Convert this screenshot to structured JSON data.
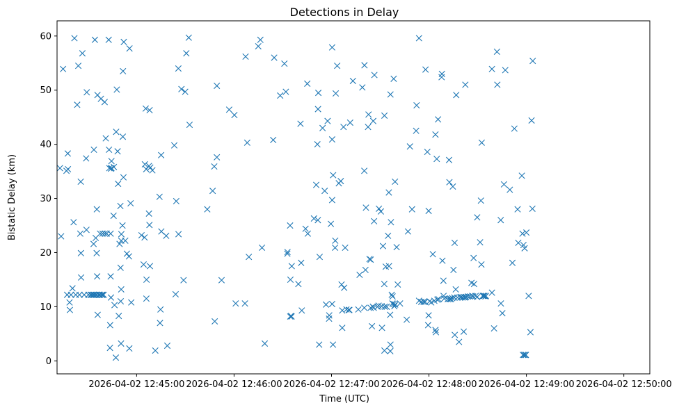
{
  "chart_data": {
    "type": "scatter",
    "title": "Detections in Delay",
    "xlabel": "Time (UTC)",
    "ylabel": "Bistatic Delay (km)",
    "marker": "x",
    "color": "#1f77b4",
    "grid": false,
    "xlim_seconds": [
      -49,
      316
    ],
    "ylim": [
      -2.4,
      62.8
    ],
    "x_ticks": [
      {
        "t": 0,
        "label": "2026-04-02 12:45:00"
      },
      {
        "t": 60,
        "label": "2026-04-02 12:46:00"
      },
      {
        "t": 120,
        "label": "2026-04-02 12:47:00"
      },
      {
        "t": 180,
        "label": "2026-04-02 12:48:00"
      },
      {
        "t": 240,
        "label": "2026-04-02 12:49:00"
      },
      {
        "t": 300,
        "label": "2026-04-02 12:50:00"
      }
    ],
    "y_ticks": [
      0,
      10,
      20,
      30,
      40,
      50,
      60
    ],
    "time_origin": "2026-04-02 12:45:00",
    "points_note": "t = seconds after 12:45:00, y = bistatic delay in km",
    "points": [
      [
        -47.2,
        35.6
      ],
      [
        -46.5,
        23.0
      ],
      [
        -45.3,
        53.9
      ],
      [
        -43.2,
        35.1
      ],
      [
        -42.8,
        12.2
      ],
      [
        -42.4,
        38.3
      ],
      [
        -42.3,
        35.4
      ],
      [
        -41.3,
        10.8
      ],
      [
        -41.1,
        9.4
      ],
      [
        -40.4,
        12.2
      ],
      [
        -39.5,
        13.4
      ],
      [
        -38.8,
        25.6
      ],
      [
        -38.3,
        59.6
      ],
      [
        -37.5,
        12.2
      ],
      [
        -36.6,
        47.3
      ],
      [
        -35.9,
        54.5
      ],
      [
        -35.2,
        12.2
      ],
      [
        -34.7,
        23.5
      ],
      [
        -34.4,
        33.1
      ],
      [
        -34.3,
        19.9
      ],
      [
        -34.2,
        15.4
      ],
      [
        -33.4,
        56.8
      ],
      [
        -32.3,
        12.2
      ],
      [
        -31.1,
        37.4
      ],
      [
        -30.9,
        24.2
      ],
      [
        -30.7,
        49.6
      ],
      [
        -29.7,
        12.2
      ],
      [
        -28.3,
        12.2
      ],
      [
        -27.7,
        12.2
      ],
      [
        -26.8,
        12.2
      ],
      [
        -26.5,
        21.6
      ],
      [
        -26.3,
        39.0
      ],
      [
        -26.2,
        12.2
      ],
      [
        -25.7,
        59.3
      ],
      [
        -25.3,
        12.2
      ],
      [
        -25.2,
        22.7
      ],
      [
        -24.6,
        12.2
      ],
      [
        -24.6,
        19.9
      ],
      [
        -24.5,
        28.0
      ],
      [
        -24.3,
        15.6
      ],
      [
        -24.1,
        49.1
      ],
      [
        -24.0,
        8.5
      ],
      [
        -23.3,
        12.2
      ],
      [
        -23.1,
        12.2
      ],
      [
        -22.6,
        12.2
      ],
      [
        -22.5,
        23.5
      ],
      [
        -22.0,
        48.4
      ],
      [
        -21.5,
        12.2
      ],
      [
        -21.0,
        12.2
      ],
      [
        -21.0,
        23.5
      ],
      [
        -20.3,
        12.2
      ],
      [
        -19.7,
        47.8
      ],
      [
        -19.6,
        23.5
      ],
      [
        -19.0,
        41.1
      ],
      [
        -18.4,
        23.5
      ],
      [
        -17.2,
        59.3
      ],
      [
        -17.0,
        39.0
      ],
      [
        -16.8,
        35.6
      ],
      [
        -16.4,
        2.4
      ],
      [
        -16.3,
        6.6
      ],
      [
        -16.0,
        23.5
      ],
      [
        -16.0,
        15.6
      ],
      [
        -15.8,
        11.7
      ],
      [
        -15.8,
        35.5
      ],
      [
        -15.5,
        36.9
      ],
      [
        -15.5,
        35.6
      ],
      [
        -14.2,
        26.8
      ],
      [
        -14.0,
        35.8
      ],
      [
        -13.6,
        10.3
      ],
      [
        -12.8,
        0.6
      ],
      [
        -12.6,
        42.3
      ],
      [
        -12.2,
        50.1
      ],
      [
        -11.7,
        38.7
      ],
      [
        -11.4,
        32.7
      ],
      [
        -11.0,
        8.3
      ],
      [
        -10.5,
        21.6
      ],
      [
        -10.0,
        28.6
      ],
      [
        -9.9,
        17.2
      ],
      [
        -9.8,
        11.0
      ],
      [
        -9.6,
        3.2
      ],
      [
        -9.5,
        13.2
      ],
      [
        -9.5,
        22.2
      ],
      [
        -9.4,
        23.4
      ],
      [
        -8.7,
        25.0
      ],
      [
        -8.5,
        41.4
      ],
      [
        -8.4,
        53.5
      ],
      [
        -8.1,
        33.9
      ],
      [
        -7.9,
        58.9
      ],
      [
        -7.0,
        22.2
      ],
      [
        -6.0,
        19.8
      ],
      [
        -4.7,
        19.3
      ],
      [
        -4.5,
        2.3
      ],
      [
        -4.4,
        57.7
      ],
      [
        -3.7,
        29.1
      ],
      [
        -3.3,
        10.8
      ],
      [
        3.0,
        23.2
      ],
      [
        4.3,
        17.8
      ],
      [
        4.9,
        22.8
      ],
      [
        5.1,
        36.3
      ],
      [
        5.6,
        46.6
      ],
      [
        5.9,
        35.4
      ],
      [
        6.0,
        11.5
      ],
      [
        6.1,
        15.0
      ],
      [
        7.6,
        27.2
      ],
      [
        7.6,
        36.0
      ],
      [
        7.9,
        25.1
      ],
      [
        8.0,
        46.3
      ],
      [
        8.2,
        17.5
      ],
      [
        8.4,
        35.7
      ],
      [
        9.7,
        35.2
      ],
      [
        11.5,
        1.9
      ],
      [
        14.1,
        30.3
      ],
      [
        14.4,
        7.0
      ],
      [
        14.7,
        9.5
      ],
      [
        15.1,
        38.0
      ],
      [
        15.2,
        23.9
      ],
      [
        18.2,
        23.1
      ],
      [
        18.9,
        2.8
      ],
      [
        23.2,
        39.8
      ],
      [
        24.0,
        12.3
      ],
      [
        24.4,
        29.5
      ],
      [
        25.7,
        54.0
      ],
      [
        25.8,
        23.4
      ],
      [
        27.6,
        50.2
      ],
      [
        28.9,
        14.9
      ],
      [
        29.9,
        49.7
      ],
      [
        30.6,
        56.8
      ],
      [
        32.1,
        59.7
      ],
      [
        32.6,
        43.6
      ],
      [
        43.5,
        28.0
      ],
      [
        46.8,
        31.4
      ],
      [
        47.8,
        35.9
      ],
      [
        48.1,
        7.3
      ],
      [
        49.4,
        50.8
      ],
      [
        49.4,
        37.6
      ],
      [
        52.3,
        14.9
      ],
      [
        57.0,
        46.4
      ],
      [
        60.2,
        45.4
      ],
      [
        61.0,
        10.6
      ],
      [
        66.7,
        10.6
      ],
      [
        67.1,
        56.2
      ],
      [
        68.1,
        40.3
      ],
      [
        69.1,
        19.2
      ],
      [
        74.9,
        58.1
      ],
      [
        76.2,
        59.3
      ],
      [
        77.2,
        20.9
      ],
      [
        78.9,
        3.2
      ],
      [
        84.1,
        40.8
      ],
      [
        84.7,
        56.0
      ],
      [
        88.4,
        49.0
      ],
      [
        91.0,
        54.9
      ],
      [
        91.9,
        49.7
      ],
      [
        92.8,
        19.8
      ],
      [
        92.9,
        20.1
      ],
      [
        94.5,
        25.0
      ],
      [
        94.6,
        8.2
      ],
      [
        94.7,
        15.0
      ],
      [
        95.1,
        8.3
      ],
      [
        95.4,
        8.2
      ],
      [
        95.5,
        17.5
      ],
      [
        99.6,
        14.2
      ],
      [
        100.9,
        43.8
      ],
      [
        101.3,
        18.1
      ],
      [
        101.7,
        9.3
      ],
      [
        104.0,
        24.4
      ],
      [
        105.1,
        51.2
      ],
      [
        105.4,
        23.5
      ],
      [
        109.2,
        26.3
      ],
      [
        110.6,
        32.5
      ],
      [
        111.3,
        40.0
      ],
      [
        111.6,
        26.0
      ],
      [
        111.7,
        46.5
      ],
      [
        111.9,
        49.5
      ],
      [
        112.4,
        3.0
      ],
      [
        112.7,
        19.2
      ],
      [
        114.5,
        43.0
      ],
      [
        115.8,
        31.4
      ],
      [
        116.6,
        10.4
      ],
      [
        117.6,
        44.3
      ],
      [
        118.5,
        7.8
      ],
      [
        118.6,
        8.4
      ],
      [
        119.6,
        25.3
      ],
      [
        120.4,
        10.5
      ],
      [
        120.4,
        57.9
      ],
      [
        120.4,
        40.9
      ],
      [
        120.4,
        29.7
      ],
      [
        120.9,
        3.0
      ],
      [
        121.0,
        34.3
      ],
      [
        122.2,
        20.9
      ],
      [
        122.3,
        22.2
      ],
      [
        122.6,
        49.4
      ],
      [
        123.5,
        54.5
      ],
      [
        124.5,
        32.8
      ],
      [
        125.7,
        33.2
      ],
      [
        126.2,
        14.1
      ],
      [
        126.6,
        9.3
      ],
      [
        126.6,
        6.1
      ],
      [
        127.4,
        43.2
      ],
      [
        127.8,
        13.5
      ],
      [
        128.4,
        20.9
      ],
      [
        129.2,
        9.5
      ],
      [
        130.6,
        9.4
      ],
      [
        131.0,
        9.4
      ],
      [
        131.5,
        44.0
      ],
      [
        133.2,
        51.7
      ],
      [
        136.5,
        9.5
      ],
      [
        137.3,
        15.9
      ],
      [
        139.0,
        50.5
      ],
      [
        140.2,
        9.8
      ],
      [
        140.2,
        35.1
      ],
      [
        140.3,
        54.6
      ],
      [
        140.9,
        16.8
      ],
      [
        141.2,
        28.3
      ],
      [
        142.5,
        43.2
      ],
      [
        142.8,
        45.5
      ],
      [
        143.4,
        18.8
      ],
      [
        144.1,
        18.7
      ],
      [
        144.1,
        9.8
      ],
      [
        144.9,
        6.4
      ],
      [
        145.5,
        10.0
      ],
      [
        145.7,
        44.3
      ],
      [
        146.0,
        9.8
      ],
      [
        146.2,
        25.8
      ],
      [
        146.4,
        52.8
      ],
      [
        148.3,
        10.0
      ],
      [
        149.0,
        10.2
      ],
      [
        149.2,
        28.1
      ],
      [
        150.4,
        27.6
      ],
      [
        150.8,
        10.1
      ],
      [
        151.1,
        6.1
      ],
      [
        151.7,
        21.2
      ],
      [
        152.5,
        14.2
      ],
      [
        152.6,
        45.3
      ],
      [
        152.6,
        1.9
      ],
      [
        152.8,
        10.0
      ],
      [
        153.4,
        17.4
      ],
      [
        154.0,
        10.0
      ],
      [
        154.8,
        23.1
      ],
      [
        155.3,
        31.1
      ],
      [
        155.4,
        17.5
      ],
      [
        156.1,
        8.5
      ],
      [
        156.2,
        1.8
      ],
      [
        156.3,
        3.0
      ],
      [
        156.3,
        49.2
      ],
      [
        156.6,
        25.6
      ],
      [
        157.1,
        12.2
      ],
      [
        157.5,
        10.6
      ],
      [
        157.6,
        11.9
      ],
      [
        158.2,
        10.5
      ],
      [
        158.3,
        52.1
      ],
      [
        158.7,
        10.1
      ],
      [
        159.1,
        33.1
      ],
      [
        159.2,
        10.4
      ],
      [
        160.1,
        21.0
      ],
      [
        160.8,
        14.1
      ],
      [
        162.2,
        10.6
      ],
      [
        166.3,
        7.6
      ],
      [
        167.1,
        23.9
      ],
      [
        168.3,
        39.6
      ],
      [
        169.6,
        28.0
      ],
      [
        172.1,
        42.5
      ],
      [
        172.4,
        47.2
      ],
      [
        173.9,
        11.1
      ],
      [
        173.9,
        59.6
      ],
      [
        175.3,
        10.9
      ],
      [
        176.7,
        10.9
      ],
      [
        177.6,
        10.9
      ],
      [
        177.9,
        53.8
      ],
      [
        179.0,
        38.6
      ],
      [
        179.5,
        6.6
      ],
      [
        179.8,
        8.4
      ],
      [
        179.8,
        27.7
      ],
      [
        180.4,
        11.0
      ],
      [
        181.4,
        10.8
      ],
      [
        182.4,
        19.7
      ],
      [
        183.3,
        11.1
      ],
      [
        184.0,
        41.8
      ],
      [
        184.0,
        5.7
      ],
      [
        184.3,
        5.3
      ],
      [
        184.8,
        37.3
      ],
      [
        185.2,
        11.3
      ],
      [
        185.6,
        44.6
      ],
      [
        185.9,
        11.4
      ],
      [
        187.8,
        52.4
      ],
      [
        188.0,
        53.0
      ],
      [
        188.3,
        18.5
      ],
      [
        188.9,
        14.8
      ],
      [
        189.0,
        12.0
      ],
      [
        189.4,
        11.5
      ],
      [
        191.6,
        11.4
      ],
      [
        192.4,
        37.1
      ],
      [
        192.6,
        33.0
      ],
      [
        192.7,
        11.4
      ],
      [
        193.2,
        11.5
      ],
      [
        193.5,
        11.4
      ],
      [
        194.3,
        11.6
      ],
      [
        194.7,
        32.2
      ],
      [
        195.1,
        16.8
      ],
      [
        195.6,
        11.7
      ],
      [
        195.8,
        21.8
      ],
      [
        195.9,
        4.8
      ],
      [
        196.5,
        13.2
      ],
      [
        196.8,
        49.1
      ],
      [
        197.6,
        11.7
      ],
      [
        198.5,
        3.5
      ],
      [
        199.3,
        11.7
      ],
      [
        199.8,
        11.8
      ],
      [
        200.6,
        11.7
      ],
      [
        201.4,
        5.4
      ],
      [
        201.5,
        11.8
      ],
      [
        202.2,
        11.7
      ],
      [
        202.4,
        51.0
      ],
      [
        202.8,
        11.8
      ],
      [
        204.0,
        11.9
      ],
      [
        205.2,
        11.9
      ],
      [
        206.2,
        14.4
      ],
      [
        206.6,
        12.0
      ],
      [
        207.2,
        11.9
      ],
      [
        207.5,
        19.0
      ],
      [
        207.8,
        14.2
      ],
      [
        208.8,
        12.0
      ],
      [
        209.7,
        26.5
      ],
      [
        209.7,
        11.8
      ],
      [
        211.5,
        21.9
      ],
      [
        212.0,
        29.6
      ],
      [
        212.3,
        17.8
      ],
      [
        212.5,
        40.3
      ],
      [
        213.1,
        12.0
      ],
      [
        213.5,
        12.0
      ],
      [
        214.1,
        12.0
      ],
      [
        214.8,
        11.9
      ],
      [
        215.0,
        12.0
      ],
      [
        218.8,
        12.6
      ],
      [
        218.8,
        53.9
      ],
      [
        220.1,
        6.0
      ],
      [
        221.9,
        57.1
      ],
      [
        222.1,
        51.0
      ],
      [
        224.2,
        26.0
      ],
      [
        224.3,
        10.6
      ],
      [
        225.2,
        8.8
      ],
      [
        226.2,
        32.6
      ],
      [
        227.0,
        53.7
      ],
      [
        229.8,
        31.6
      ],
      [
        231.4,
        18.1
      ],
      [
        232.6,
        42.9
      ],
      [
        234.6,
        28.0
      ],
      [
        235.0,
        21.8
      ],
      [
        237.2,
        34.2
      ],
      [
        237.6,
        23.5
      ],
      [
        237.9,
        1.1
      ],
      [
        238.2,
        21.4
      ],
      [
        238.6,
        1.1
      ],
      [
        238.9,
        20.8
      ],
      [
        239.4,
        1.1
      ],
      [
        239.7,
        1.1
      ],
      [
        240.0,
        23.7
      ],
      [
        241.4,
        12.0
      ],
      [
        242.5,
        5.3
      ],
      [
        243.2,
        44.4
      ],
      [
        243.7,
        28.1
      ],
      [
        243.9,
        55.4
      ]
    ]
  }
}
